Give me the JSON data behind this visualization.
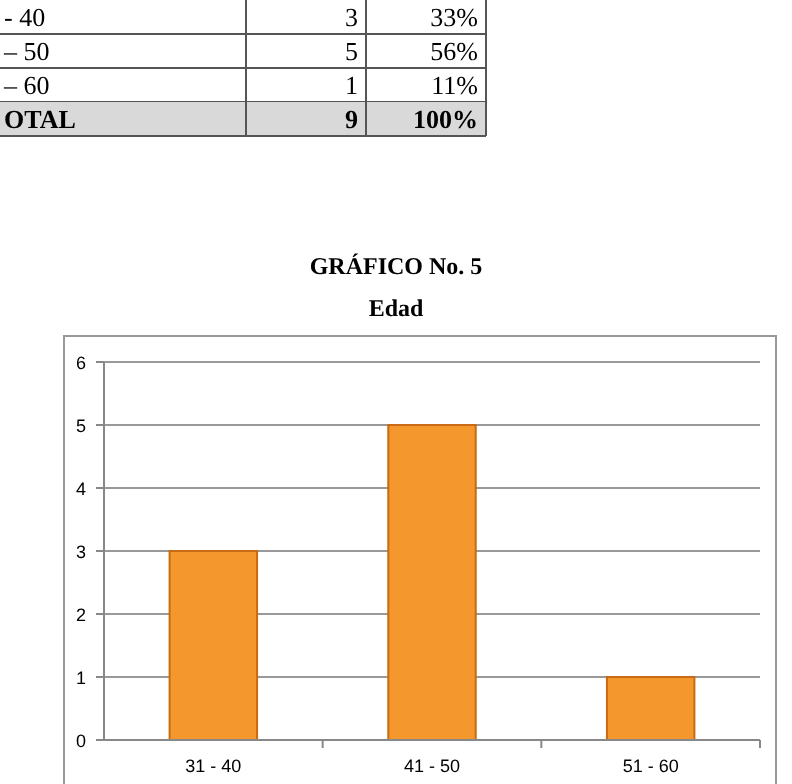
{
  "chart_data": {
    "type": "bar",
    "title": "GRÁFICO  No. 5",
    "subtitle": "Edad",
    "categories": [
      "31 - 40",
      "41 - 50",
      "51 - 60"
    ],
    "values": [
      3,
      5,
      1
    ],
    "color": "#f4972d",
    "ylim": [
      0,
      6
    ],
    "yticks": [
      0,
      1,
      2,
      3,
      4,
      5,
      6
    ],
    "grid": "y",
    "annotations": [
      "- 40",
      "3",
      "33%",
      "– 50",
      "5",
      "56%",
      "– 60",
      "1",
      "11%",
      "OTAL",
      "9",
      "100%"
    ]
  }
}
